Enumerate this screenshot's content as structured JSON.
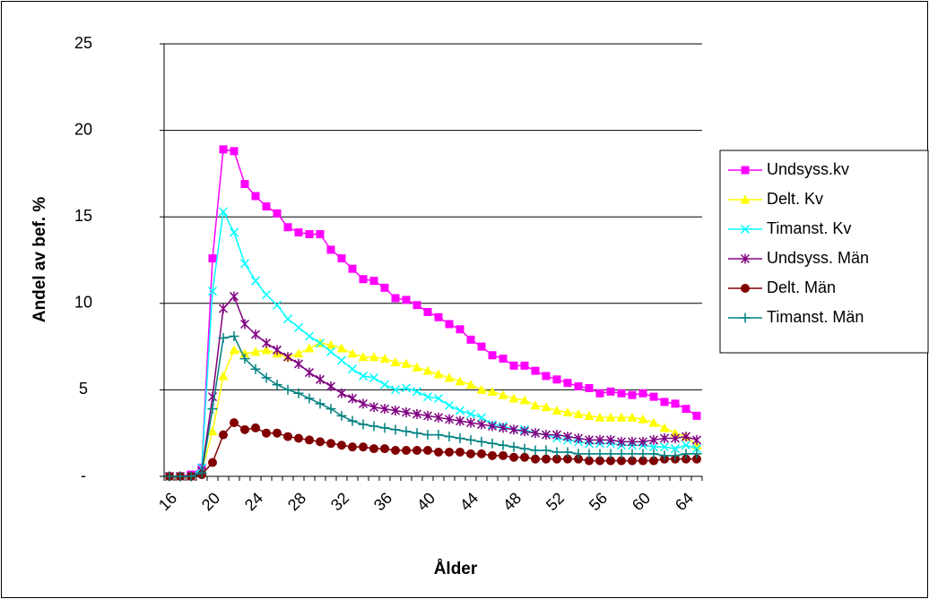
{
  "chart_data": {
    "type": "line",
    "xlabel": "Ålder",
    "ylabel": "Andel av bef. %",
    "categories": [
      "16",
      null,
      null,
      null,
      "20",
      null,
      null,
      null,
      "24",
      null,
      null,
      null,
      "28",
      null,
      null,
      null,
      "32",
      null,
      null,
      null,
      "36",
      null,
      null,
      null,
      "40",
      null,
      null,
      null,
      "44",
      null,
      null,
      null,
      "48",
      null,
      null,
      null,
      "52",
      null,
      null,
      null,
      "56",
      null,
      null,
      null,
      "60",
      null,
      null,
      null,
      "64",
      null
    ],
    "ylim": [
      0,
      25
    ],
    "yticks": [
      {
        "value": 0,
        "label": "-"
      },
      5,
      10,
      15,
      20,
      25
    ],
    "grid": true,
    "legend": "right",
    "series": [
      {
        "name": "Undsyss.kv",
        "color": "#ff00ff",
        "marker": "square",
        "values": [
          0,
          0,
          0.1,
          0.5,
          12.6,
          18.9,
          18.8,
          16.9,
          16.2,
          15.6,
          15.2,
          14.4,
          14.1,
          14.0,
          14.0,
          13.1,
          12.6,
          12.0,
          11.4,
          11.3,
          10.9,
          10.3,
          10.2,
          9.9,
          9.5,
          9.2,
          8.8,
          8.5,
          7.9,
          7.5,
          7.0,
          6.8,
          6.4,
          6.4,
          6.1,
          5.8,
          5.6,
          5.4,
          5.2,
          5.1,
          4.8,
          4.9,
          4.8,
          4.7,
          4.8,
          4.6,
          4.3,
          4.2,
          3.9,
          3.5
        ]
      },
      {
        "name": "Delt. Kv",
        "color": "#ffff00",
        "marker": "triangle",
        "values": [
          0,
          0,
          0,
          0.3,
          2.6,
          5.8,
          7.3,
          7.1,
          7.2,
          7.3,
          7.1,
          6.9,
          7.1,
          7.4,
          7.7,
          7.6,
          7.4,
          7.1,
          6.9,
          6.9,
          6.8,
          6.6,
          6.5,
          6.3,
          6.1,
          5.9,
          5.7,
          5.5,
          5.3,
          5.0,
          4.9,
          4.7,
          4.5,
          4.4,
          4.1,
          4.0,
          3.8,
          3.7,
          3.6,
          3.5,
          3.4,
          3.4,
          3.4,
          3.4,
          3.3,
          3.1,
          2.8,
          2.5,
          2.3,
          1.8
        ]
      },
      {
        "name": "Timanst. Kv",
        "color": "#00ffff",
        "marker": "x",
        "values": [
          0,
          0,
          0,
          0.5,
          10.7,
          15.3,
          14.1,
          12.3,
          11.3,
          10.5,
          9.9,
          9.1,
          8.6,
          8.1,
          7.7,
          7.2,
          6.7,
          6.2,
          5.8,
          5.7,
          5.3,
          5.0,
          5.1,
          4.9,
          4.6,
          4.5,
          4.1,
          3.8,
          3.6,
          3.4,
          3.0,
          2.9,
          2.7,
          2.7,
          2.5,
          2.4,
          2.2,
          2.1,
          2.0,
          1.9,
          1.9,
          1.9,
          1.8,
          1.8,
          1.8,
          1.7,
          1.7,
          1.6,
          1.8,
          1.6
        ]
      },
      {
        "name": "Undsyss. Män",
        "color": "#800080",
        "marker": "asterisk",
        "values": [
          0,
          0,
          0,
          0.3,
          4.6,
          9.7,
          10.4,
          8.8,
          8.2,
          7.7,
          7.3,
          6.9,
          6.5,
          6.0,
          5.6,
          5.2,
          4.8,
          4.5,
          4.2,
          4.0,
          3.9,
          3.8,
          3.7,
          3.6,
          3.5,
          3.4,
          3.3,
          3.2,
          3.1,
          3.0,
          2.9,
          2.8,
          2.7,
          2.6,
          2.5,
          2.4,
          2.4,
          2.3,
          2.2,
          2.1,
          2.1,
          2.1,
          2.0,
          2.0,
          2.0,
          2.1,
          2.2,
          2.2,
          2.3,
          2.1
        ]
      },
      {
        "name": "Delt. Män",
        "color": "#800000",
        "marker": "circle",
        "values": [
          0,
          0,
          0,
          0.1,
          0.8,
          2.4,
          3.1,
          2.7,
          2.8,
          2.5,
          2.5,
          2.3,
          2.2,
          2.1,
          2.0,
          1.9,
          1.8,
          1.7,
          1.7,
          1.6,
          1.6,
          1.5,
          1.5,
          1.5,
          1.5,
          1.4,
          1.4,
          1.4,
          1.3,
          1.3,
          1.2,
          1.2,
          1.1,
          1.1,
          1.0,
          1.0,
          1.0,
          1.0,
          1.0,
          0.9,
          0.9,
          0.9,
          0.9,
          0.9,
          0.9,
          0.9,
          1.0,
          1.0,
          1.0,
          1.0
        ]
      },
      {
        "name": "Timanst. Män",
        "color": "#008080",
        "marker": "plus",
        "values": [
          0,
          0,
          0,
          0.2,
          3.9,
          8.0,
          8.1,
          6.8,
          6.2,
          5.7,
          5.3,
          5.0,
          4.8,
          4.5,
          4.2,
          3.9,
          3.5,
          3.2,
          3.0,
          2.9,
          2.8,
          2.7,
          2.6,
          2.5,
          2.4,
          2.4,
          2.3,
          2.2,
          2.1,
          2.0,
          1.9,
          1.8,
          1.7,
          1.6,
          1.5,
          1.5,
          1.4,
          1.4,
          1.3,
          1.3,
          1.3,
          1.3,
          1.3,
          1.3,
          1.3,
          1.3,
          1.2,
          1.2,
          1.3,
          1.3
        ]
      }
    ]
  }
}
